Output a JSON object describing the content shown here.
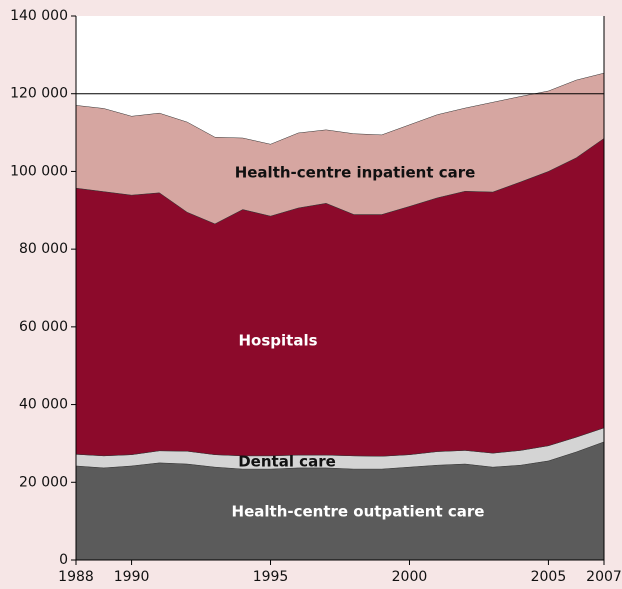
{
  "chart_data": {
    "type": "stacked-area",
    "x": [
      1988,
      1989,
      1990,
      1991,
      1992,
      1993,
      1994,
      1995,
      1996,
      1997,
      1998,
      1999,
      2000,
      2001,
      2002,
      2003,
      2004,
      2005,
      2006,
      2007
    ],
    "series": [
      {
        "name": "Health-centre outpatient care",
        "color": "#5b5b5b",
        "label_color": "#ffffff",
        "values": [
          24200,
          23700,
          24200,
          25000,
          24700,
          23900,
          23400,
          23400,
          23700,
          23700,
          23400,
          23400,
          23900,
          24400,
          24700,
          23900,
          24400,
          25500,
          27800,
          30400
        ]
      },
      {
        "name": "Dental care",
        "color": "#d4d4d4",
        "label_color": "#111111",
        "values": [
          3000,
          3100,
          2900,
          3100,
          3300,
          3200,
          3400,
          3400,
          3300,
          3300,
          3400,
          3300,
          3200,
          3500,
          3500,
          3600,
          3800,
          3900,
          3800,
          3600
        ]
      },
      {
        "name": "Hospitals",
        "color": "#8c0a2b",
        "label_color": "#ffffff",
        "values": [
          68500,
          68000,
          66800,
          66400,
          61500,
          59400,
          63400,
          61700,
          63600,
          64800,
          62100,
          62200,
          63900,
          65300,
          66700,
          67200,
          69100,
          70600,
          71900,
          74500
        ]
      },
      {
        "name": "Health-centre inpatient care",
        "color": "#d6a6a1",
        "label_color": "#111111",
        "values": [
          21300,
          21400,
          20300,
          20500,
          23200,
          22300,
          18400,
          18500,
          19300,
          18900,
          20800,
          20500,
          21000,
          21400,
          21400,
          23100,
          22000,
          20700,
          20000,
          16800
        ]
      }
    ],
    "xlim": [
      1988,
      2007
    ],
    "xticks": [
      1988,
      1990,
      1995,
      2000,
      2005,
      2007
    ],
    "ylim": [
      0,
      140000
    ],
    "yticks": [
      0,
      {
        "value": 20000,
        "label": "20 000"
      },
      {
        "value": 40000,
        "label": "40 000"
      },
      {
        "value": 60000,
        "label": "60 000"
      },
      {
        "value": 80000,
        "label": "80 000"
      },
      {
        "value": 100000,
        "label": "100 000"
      },
      {
        "value": 120000,
        "label": "120 000"
      },
      {
        "value": 140000,
        "label": "140 000"
      }
    ],
    "reference_line": 120000
  }
}
